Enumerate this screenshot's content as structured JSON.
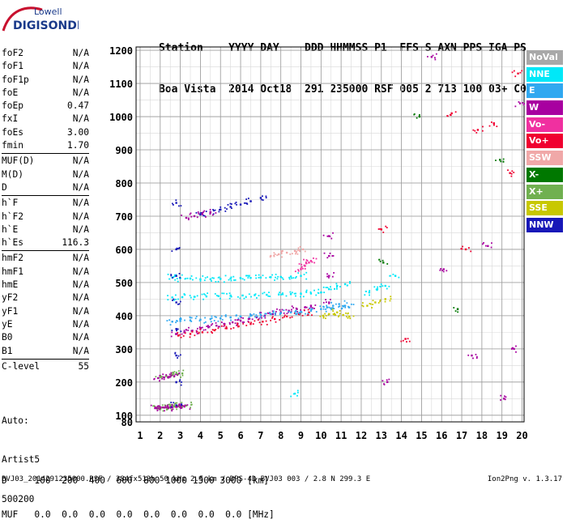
{
  "logo": {
    "line1": "Lowell",
    "line2": "DIGISONDE"
  },
  "header": {
    "labels": "Station    YYYY DAY    DDD HHMMSS P1  FFS S AXN PPS IGA PS",
    "values": "Boa Vista  2014 Oct18  291 235000 RSF 005 2 713 100 03+ C0"
  },
  "params": {
    "group1": [
      {
        "label": "foF2",
        "value": "N/A"
      },
      {
        "label": "foF1",
        "value": "N/A"
      },
      {
        "label": "foF1p",
        "value": "N/A"
      },
      {
        "label": "foE",
        "value": "N/A"
      },
      {
        "label": "foEp",
        "value": "0.47"
      },
      {
        "label": "fxI",
        "value": "N/A"
      },
      {
        "label": "foEs",
        "value": "3.00"
      },
      {
        "label": "fmin",
        "value": "1.70"
      }
    ],
    "group2": [
      {
        "label": "MUF(D)",
        "value": "N/A"
      },
      {
        "label": "M(D)",
        "value": "N/A"
      },
      {
        "label": "D",
        "value": "N/A"
      }
    ],
    "group3": [
      {
        "label": "h`F",
        "value": "N/A"
      },
      {
        "label": "h`F2",
        "value": "N/A"
      },
      {
        "label": "h`E",
        "value": "N/A"
      },
      {
        "label": "h`Es",
        "value": "116.3"
      }
    ],
    "group4": [
      {
        "label": "hmF2",
        "value": "N/A"
      },
      {
        "label": "hmF1",
        "value": "N/A"
      },
      {
        "label": "hmE",
        "value": "N/A"
      },
      {
        "label": "yF2",
        "value": "N/A"
      },
      {
        "label": "yF1",
        "value": "N/A"
      },
      {
        "label": "yE",
        "value": "N/A"
      },
      {
        "label": "B0",
        "value": "N/A"
      },
      {
        "label": "B1",
        "value": "N/A"
      }
    ],
    "group5": [
      {
        "label": "C-level",
        "value": "55"
      }
    ]
  },
  "auto": {
    "line1": "Auto:",
    "line2": "Artist5",
    "line3": "500200"
  },
  "dtable": {
    "d_row": "D     100  200  400  600  800 1000 1500 3000 [km]",
    "muf_row": "MUF   0.0  0.0  0.0  0.0  0.0  0.0  0.0  0.0 [MHz]"
  },
  "footer": {
    "file": "BVJ03_2014291235000.RSF / 384fx512h 50 kHz 2.5 km / DPS-4D BVJ03 003 / 2.8 N 299.3 E",
    "version": "Ion2Png v. 1.3.17"
  },
  "legend": [
    {
      "label": "NoVal",
      "color": "#a8a8a8"
    },
    {
      "label": "NNE",
      "color": "#00e8f8"
    },
    {
      "label": "E",
      "color": "#30a8f0"
    },
    {
      "label": "W",
      "color": "#a800a0"
    },
    {
      "label": "Vo-",
      "color": "#f030a0"
    },
    {
      "label": "Vo+",
      "color": "#f00030"
    },
    {
      "label": "SSW",
      "color": "#f0a8a8"
    },
    {
      "label": "X-",
      "color": "#007800"
    },
    {
      "label": "X+",
      "color": "#70b050"
    },
    {
      "label": "SSE",
      "color": "#c8c800"
    },
    {
      "label": "NNW",
      "color": "#1818b8"
    }
  ],
  "chart_data": {
    "type": "scatter",
    "title": "",
    "xlabel": "",
    "ylabel": "",
    "xlim": [
      0.8,
      20.1
    ],
    "ylim": [
      80,
      1210
    ],
    "xticks": [
      1,
      2,
      3,
      4,
      5,
      6,
      7,
      8,
      9,
      10,
      11,
      12,
      13,
      14,
      15,
      16,
      17,
      18,
      19,
      20
    ],
    "yticks": [
      80,
      100,
      200,
      300,
      400,
      500,
      600,
      700,
      800,
      900,
      1000,
      1100,
      1200
    ],
    "grid": true,
    "series": [
      {
        "colorKey": "W",
        "x": [
          2.8,
          3.2,
          3.6,
          4.0,
          4.4,
          4.8,
          5.2,
          5.6,
          6.0,
          6.4,
          6.8,
          7.2,
          7.6,
          8.0,
          8.4,
          8.8,
          9.2,
          9.5
        ],
        "y": [
          345,
          350,
          355,
          360,
          365,
          370,
          375,
          380,
          385,
          390,
          395,
          400,
          405,
          410,
          415,
          420,
          425,
          430
        ]
      },
      {
        "colorKey": "Vo+",
        "x": [
          2.9,
          3.5,
          4.1,
          4.7,
          5.3,
          5.9,
          6.5,
          7.1,
          7.7,
          8.3,
          8.9,
          9.4
        ],
        "y": [
          340,
          345,
          350,
          356,
          362,
          368,
          375,
          382,
          390,
          398,
          405,
          410
        ]
      },
      {
        "colorKey": "E",
        "x": [
          2.6,
          3.0,
          3.5,
          4.0,
          4.5,
          5.0,
          5.5,
          6.0,
          6.5,
          7.0,
          7.5,
          8.0,
          8.5,
          9.0,
          9.5
        ],
        "y": [
          382,
          384,
          386,
          388,
          390,
          392,
          395,
          398,
          400,
          402,
          405,
          408,
          410,
          412,
          415
        ]
      },
      {
        "colorKey": "NNE",
        "x": [
          2.6,
          3.0,
          3.5,
          4.0,
          4.5,
          5.0,
          5.5,
          6.0,
          6.5,
          7.0,
          7.5,
          8.0,
          8.5,
          9.0
        ],
        "y": [
          515,
          513,
          512,
          510,
          510,
          511,
          512,
          513,
          514,
          515,
          516,
          517,
          518,
          520
        ]
      },
      {
        "colorKey": "NNE",
        "x": [
          2.6,
          3.1,
          3.7,
          4.3,
          4.9,
          5.5,
          6.1,
          6.7,
          7.3,
          7.9,
          8.5,
          9.0,
          9.5
        ],
        "y": [
          455,
          456,
          457,
          458,
          459,
          460,
          461,
          462,
          463,
          464,
          465,
          466,
          467
        ]
      },
      {
        "colorKey": "NNE",
        "x": [
          10.0,
          10.4,
          10.8,
          11.2,
          12.4,
          12.8,
          13.2
        ],
        "y": [
          470,
          480,
          490,
          495,
          470,
          480,
          490
        ]
      },
      {
        "colorKey": "E",
        "x": [
          10.0,
          10.3,
          10.6,
          10.9,
          11.2,
          11.4
        ],
        "y": [
          420,
          425,
          430,
          435,
          430,
          425
        ]
      },
      {
        "colorKey": "SSE",
        "x": [
          10.1,
          10.4,
          10.8,
          11.1,
          11.4,
          12.3,
          12.7,
          13.2
        ],
        "y": [
          400,
          405,
          410,
          402,
          398,
          430,
          440,
          450
        ]
      },
      {
        "colorKey": "NNW",
        "x": [
          4.0,
          4.5,
          5.0,
          5.5,
          6.0,
          6.5,
          7.0
        ],
        "y": [
          705,
          712,
          720,
          728,
          735,
          745,
          755
        ]
      },
      {
        "colorKey": "W",
        "x": [
          3.3,
          3.7,
          4.1,
          4.5
        ],
        "y": [
          695,
          700,
          706,
          712
        ]
      },
      {
        "colorKey": "SSW",
        "x": [
          7.5,
          7.9,
          8.3,
          8.7,
          9.1
        ],
        "y": [
          580,
          585,
          590,
          595,
          600
        ]
      },
      {
        "colorKey": "Vo-",
        "x": [
          9.0,
          9.2,
          9.4,
          9.5
        ],
        "y": [
          540,
          550,
          560,
          565
        ]
      },
      {
        "colorKey": "X+",
        "x": [
          1.9,
          2.1,
          2.3,
          2.5,
          2.7,
          2.9,
          3.1,
          3.3
        ],
        "y": [
          122,
          123,
          124,
          125,
          126,
          127,
          128,
          129
        ]
      },
      {
        "colorKey": "W",
        "x": [
          1.8,
          2.0,
          2.2,
          2.4,
          2.6,
          2.8,
          3.0,
          3.2
        ],
        "y": [
          121,
          122,
          123,
          123,
          124,
          125,
          126,
          127
        ]
      },
      {
        "colorKey": "X+",
        "x": [
          2.0,
          2.3,
          2.6,
          2.9,
          3.1
        ],
        "y": [
          215,
          218,
          221,
          224,
          226
        ]
      },
      {
        "colorKey": "W",
        "x": [
          1.9,
          2.2,
          2.5,
          2.7
        ],
        "y": [
          212,
          214,
          216,
          218
        ]
      },
      {
        "colorKey": "NNW",
        "x": [
          2.8,
          2.8,
          2.8,
          2.8,
          2.8,
          2.8,
          2.8,
          2.8
        ],
        "y": [
          130,
          200,
          280,
          360,
          440,
          520,
          600,
          740
        ]
      },
      {
        "colorKey": "W",
        "x": [
          10.4,
          10.4,
          10.4,
          10.4
        ],
        "y": [
          440,
          520,
          580,
          640
        ]
      },
      {
        "colorKey": "Vo+",
        "x": [
          13.0,
          14.2,
          16.5,
          17.2,
          17.8,
          18.6,
          19.4,
          19.8
        ],
        "y": [
          660,
          330,
          1010,
          600,
          960,
          980,
          830,
          1130
        ]
      },
      {
        "colorKey": "W",
        "x": [
          13.3,
          15.5,
          16.1,
          17.5,
          18.3,
          19.1,
          19.6,
          19.9
        ],
        "y": [
          200,
          1180,
          540,
          280,
          610,
          150,
          300,
          1040
        ]
      },
      {
        "colorKey": "X-",
        "x": [
          13.1,
          14.9,
          16.8,
          18.9
        ],
        "y": [
          560,
          1000,
          420,
          870
        ]
      },
      {
        "colorKey": "NNE",
        "x": [
          8.7,
          13.7
        ],
        "y": [
          165,
          520
        ]
      }
    ]
  }
}
